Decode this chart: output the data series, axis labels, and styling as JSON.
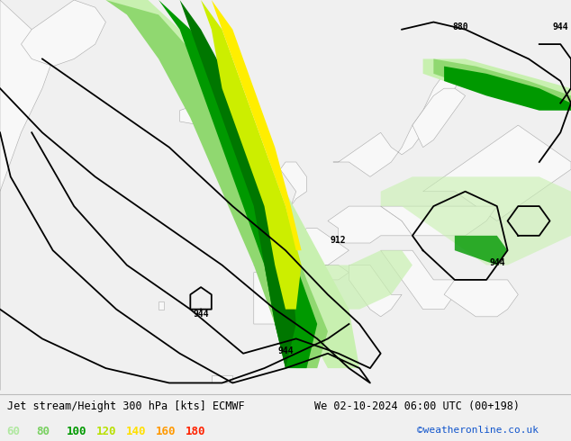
{
  "title_left": "Jet stream/Height 300 hPa [kts] ECMWF",
  "title_right": "We 02-10-2024 06:00 UTC (00+198)",
  "credit": "©weatheronline.co.uk",
  "legend_values": [
    60,
    80,
    100,
    120,
    140,
    160,
    180
  ],
  "legend_colors": [
    "#b0e8a0",
    "#78d060",
    "#009900",
    "#b8e000",
    "#ffe000",
    "#ff9900",
    "#ff2200"
  ],
  "bg_color": "#f0f0f0",
  "land_color": "#f8f8f8",
  "ocean_color": "#ddeeff",
  "figsize": [
    6.34,
    4.9
  ],
  "dpi": 100,
  "map_extent": [
    -58,
    50,
    27,
    80
  ],
  "jet_colors": {
    "60kt": "#c8f0b0",
    "80kt": "#90d870",
    "100kt": "#009900",
    "120kt": "#ccee00",
    "140kt": "#ffee00",
    "160kt": "#ffaa00",
    "180kt": "#ff3300"
  },
  "contour_color": "#000000",
  "coast_color": "#aaaaaa",
  "border_color": "#aaaaaa"
}
